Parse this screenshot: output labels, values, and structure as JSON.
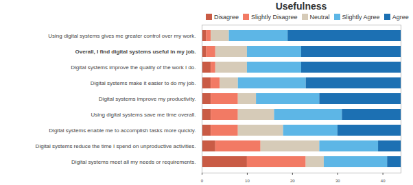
{
  "chart_data": {
    "type": "bar",
    "title": "Usefulness",
    "orientation": "horizontal",
    "stacked": true,
    "categories": [
      "Using digital systems gives me greater control over my work.",
      "Overall, I find digital systems useful in my job.",
      "Digital systems improve the quality of the work I do.",
      "Digital systems make it easier to do my job.",
      "Digital systems improve my productivity.",
      "Using digital systems save me time overall.",
      "Digital systems enable me to accomplish tasks more quickly.",
      "Digital systems reduce the time I spend on unproductive activities.",
      "Digital systems meet all my needs or requirements."
    ],
    "series": [
      {
        "name": "Disagree",
        "color": "#c95b45",
        "values": [
          1,
          1,
          2,
          2,
          2,
          2,
          2,
          3,
          10
        ]
      },
      {
        "name": "Slightly Disagree",
        "color": "#f27a64",
        "values": [
          1,
          2,
          1,
          2,
          6,
          6,
          6,
          10,
          13
        ]
      },
      {
        "name": "Neutral",
        "color": "#d6cbb8",
        "values": [
          4,
          7,
          7,
          4,
          4,
          8,
          10,
          13,
          4
        ]
      },
      {
        "name": "Slightly Agree",
        "color": "#5db6e6",
        "values": [
          13,
          12,
          12,
          15,
          14,
          15,
          12,
          13,
          14
        ]
      },
      {
        "name": "Agree",
        "color": "#1c70b3",
        "values": [
          25,
          22,
          22,
          21,
          18,
          13,
          14,
          5,
          3
        ]
      }
    ],
    "xlim": [
      0,
      44
    ],
    "xticks": [
      0,
      10,
      20,
      30,
      40
    ],
    "grid": false,
    "legend": "top"
  }
}
